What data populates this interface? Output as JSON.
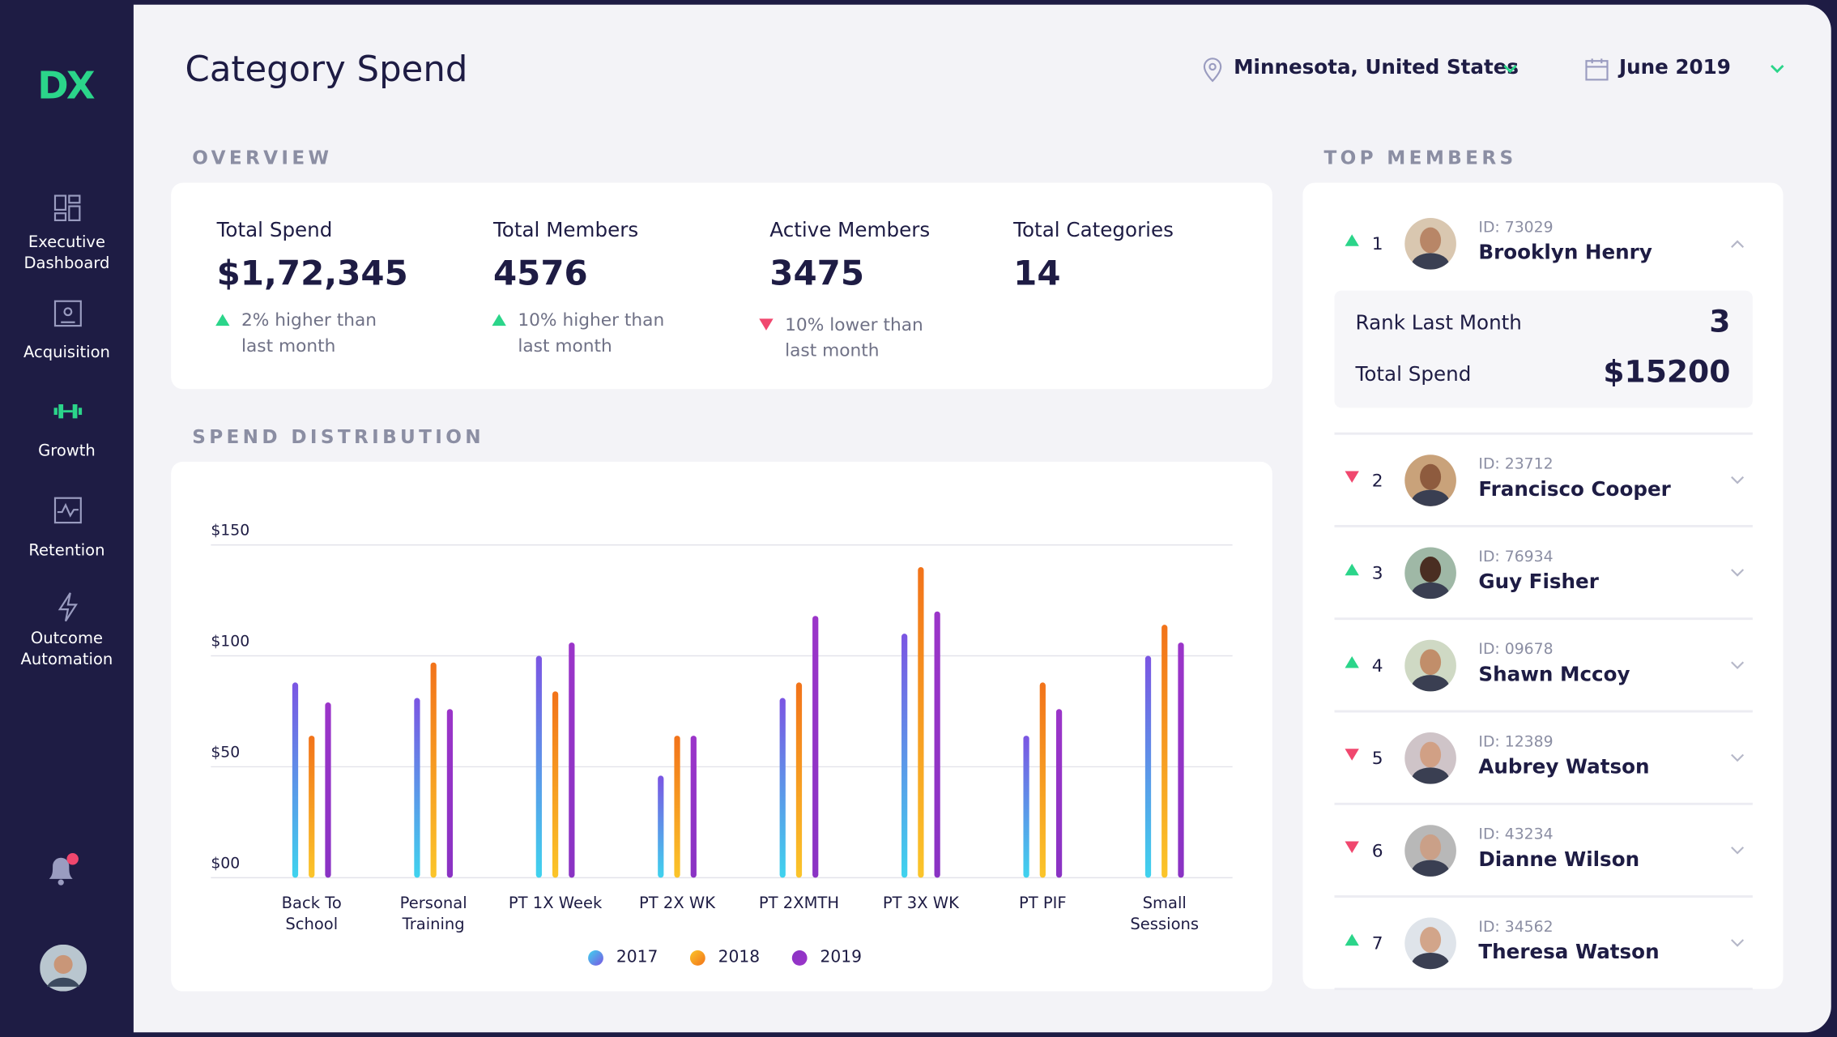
{
  "sidebar": {
    "logo": "DX",
    "nav": [
      "Executive Dashboard",
      "Acquisition",
      "Growth",
      "Retention",
      "Outcome Automation"
    ]
  },
  "header": {
    "title": "Category Spend",
    "location": "Minnesota, United States",
    "date": "June 2019"
  },
  "overview": {
    "heading": "OVERVIEW",
    "cards": [
      {
        "label": "Total Spend",
        "value": "$1,72,345",
        "change": "2% higher than last month",
        "trend": "up"
      },
      {
        "label": "Total Members",
        "value": 4576,
        "change": "10% higher than last month",
        "trend": "up"
      },
      {
        "label": "Active Members",
        "value": 3475,
        "change": "10% lower than last month",
        "trend": "down"
      },
      {
        "label": "Total Categories",
        "value": 14
      }
    ]
  },
  "chart_data": {
    "type": "bar",
    "title": "SPEND DISTRIBUTION",
    "categories": [
      "Back To School",
      "Personal Training",
      "PT 1X Week",
      "PT 2X WK",
      "PT 2XMTH",
      "PT 3X WK",
      "PT PIF",
      "Small Sessions"
    ],
    "series": [
      {
        "name": "2017",
        "color": "#7b55e3",
        "gradient_start": "#3fd3ee",
        "values": [
          88,
          81,
          100,
          46,
          81,
          110,
          64,
          100
        ]
      },
      {
        "name": "2018",
        "color": "#f2731a",
        "gradient_start": "#fbc52a",
        "values": [
          64,
          97,
          84,
          64,
          88,
          140,
          88,
          114
        ]
      },
      {
        "name": "2019",
        "color": "#9b35c9",
        "gradient_start": "#8a33c4",
        "values": [
          79,
          76,
          106,
          64,
          118,
          120,
          76,
          106
        ]
      }
    ],
    "ylim": [
      0,
      150
    ],
    "yticks": [
      {
        "value": 0,
        "label": "$00"
      },
      {
        "value": 50,
        "label": "$50"
      },
      {
        "value": 100,
        "label": "$100"
      },
      {
        "value": 150,
        "label": "$150"
      }
    ],
    "grid": true
  },
  "top_members": {
    "heading": "TOP MEMBERS",
    "members": [
      {
        "rank": 1,
        "id": "ID: 73029",
        "name": "Brooklyn Henry",
        "trend": "up",
        "details": {
          "rank_last_month_label": "Rank Last Month",
          "rank_last_month": 3,
          "total_spend_label": "Total Spend",
          "total_spend": "$15200"
        }
      },
      {
        "rank": 2,
        "id": "ID: 23712",
        "name": "Francisco Cooper",
        "trend": "down"
      },
      {
        "rank": 3,
        "id": "ID: 76934",
        "name": "Guy Fisher",
        "trend": "up"
      },
      {
        "rank": 4,
        "id": "ID: 09678",
        "name": "Shawn Mccoy",
        "trend": "up"
      },
      {
        "rank": 5,
        "id": "ID: 12389",
        "name": "Aubrey Watson",
        "trend": "down"
      },
      {
        "rank": 6,
        "id": "ID: 43234",
        "name": "Dianne Wilson",
        "trend": "down"
      },
      {
        "rank": 7,
        "id": "ID: 34562",
        "name": "Theresa Watson",
        "trend": "up"
      }
    ]
  }
}
